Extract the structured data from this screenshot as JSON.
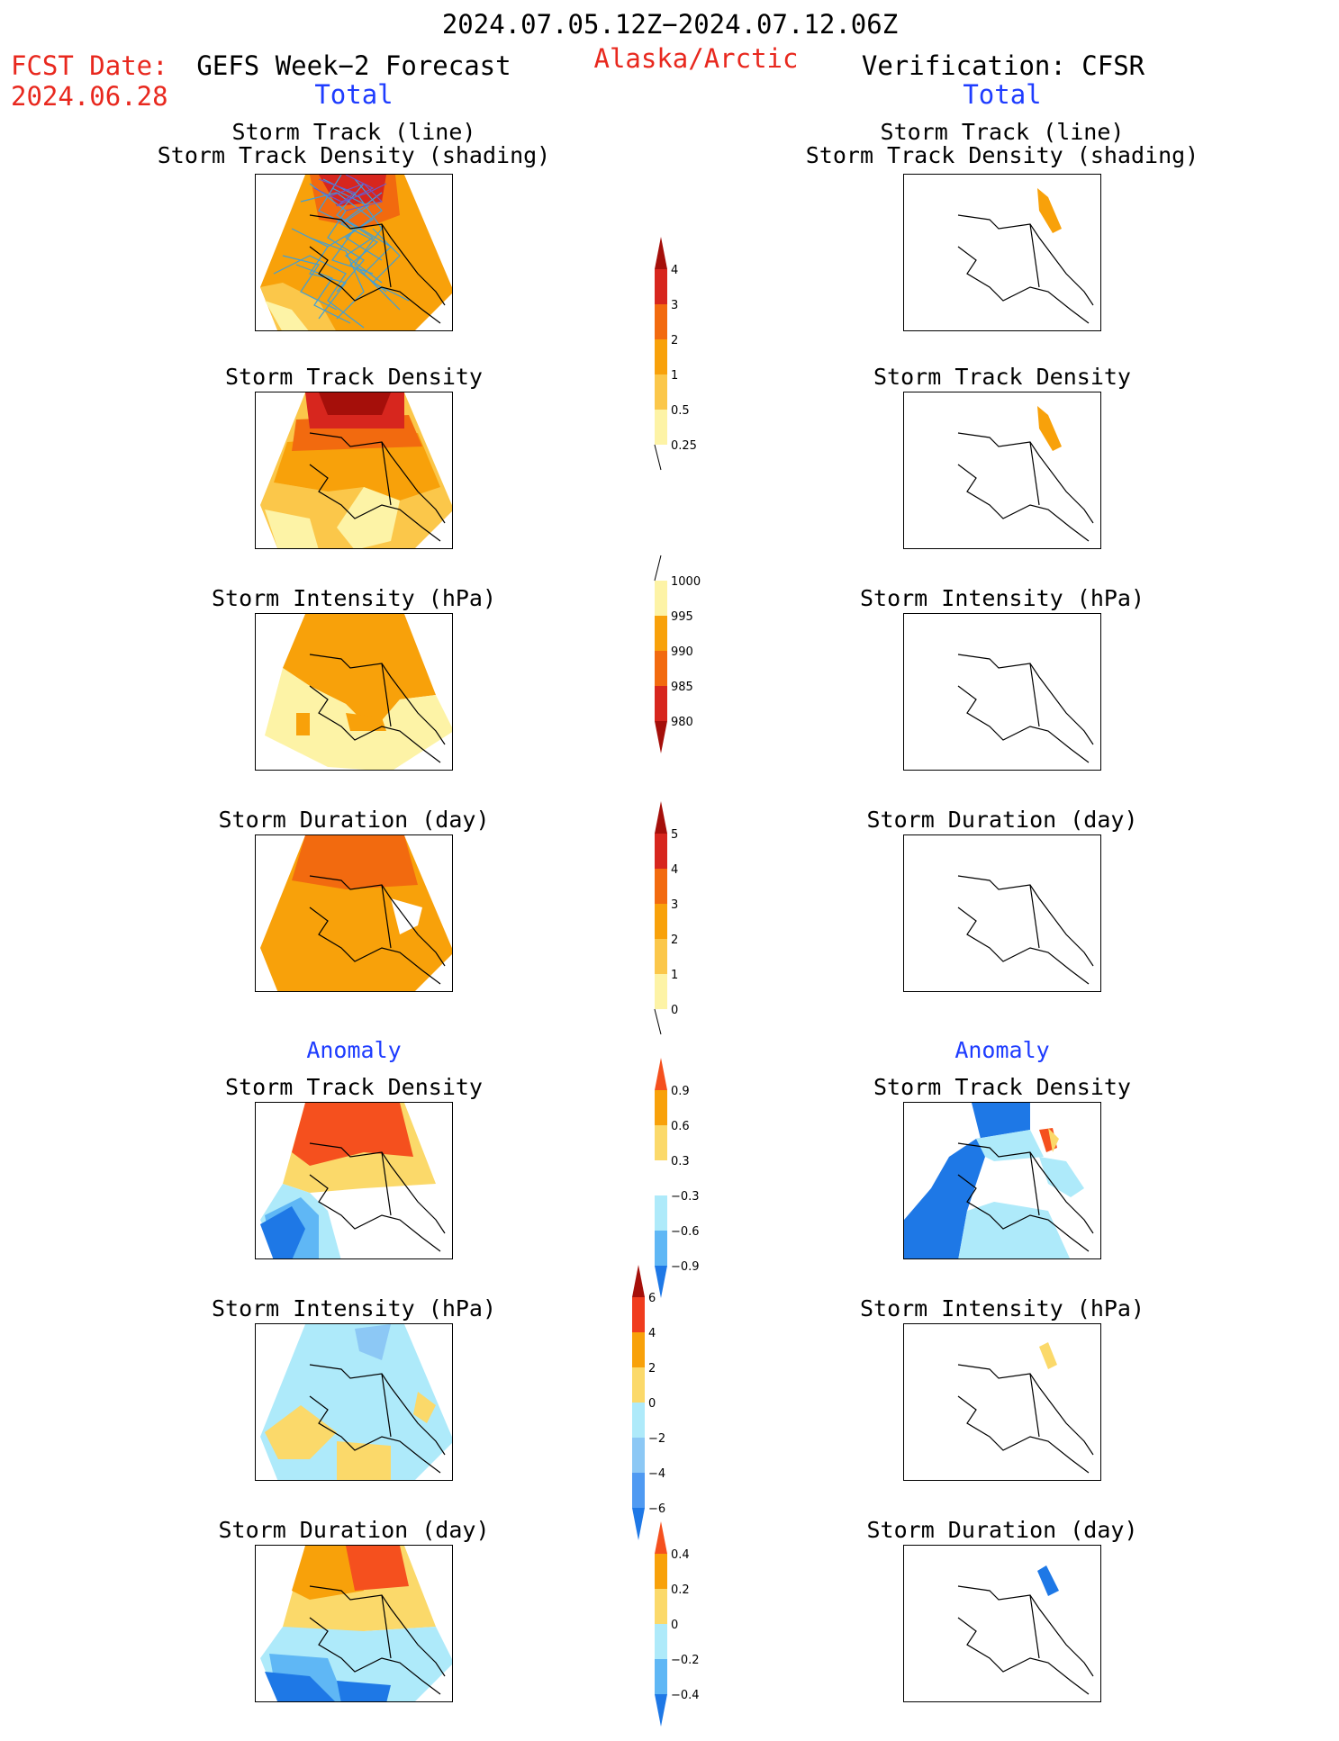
{
  "header": {
    "period": "2024.07.05.12Z−2024.07.12.06Z",
    "fcst_label": "FCST Date:",
    "fcst_date": "2024.06.28",
    "left_title": "GEFS Week−2 Forecast",
    "region": "Alaska/Arctic",
    "right_title": "Verification: CFSR",
    "total_left": "Total",
    "total_right": "Total",
    "anomaly_left": "Anomaly",
    "anomaly_right": "Anomaly"
  },
  "panels": {
    "left_1a": "Storm Track (line)",
    "left_1b": "Storm Track Density (shading)",
    "right_1a": "Storm Track (line)",
    "right_1b": "Storm Track Density (shading)",
    "left_2": "Storm Track Density",
    "right_2": "Storm Track Density",
    "left_3": "Storm Intensity (hPa)",
    "right_3": "Storm Intensity (hPa)",
    "left_4": "Storm Duration (day)",
    "right_4": "Storm Duration (day)",
    "left_5": "Storm Track Density",
    "right_5": "Storm Track Density",
    "left_6": "Storm Intensity (hPa)",
    "right_6": "Storm Intensity (hPa)",
    "left_7": "Storm Duration (day)",
    "right_7": "Storm Duration (day)"
  },
  "colorbars": {
    "density": {
      "ticks": [
        "4",
        "3",
        "2",
        "1",
        "0.5",
        "0.25"
      ],
      "colors": [
        "#a50f0a",
        "#d7261e",
        "#f26a0f",
        "#f8a10a",
        "#fbc74a",
        "#fdf3a6"
      ]
    },
    "intensity": {
      "ticks": [
        "1000",
        "995",
        "990",
        "985",
        "980"
      ],
      "colors": [
        "#fdf3a6",
        "#f8a10a",
        "#f26a0f",
        "#d7261e",
        "#a50f0a"
      ]
    },
    "duration": {
      "ticks": [
        "5",
        "4",
        "3",
        "2",
        "1",
        "0"
      ],
      "colors": [
        "#a50f0a",
        "#d7261e",
        "#f26a0f",
        "#f8a10a",
        "#fbc74a",
        "#fdf3a6"
      ]
    },
    "density_anom": {
      "ticks": [
        "0.9",
        "0.6",
        "0.3",
        "−0.3",
        "−0.6",
        "−0.9"
      ],
      "colors": [
        "#f5501e",
        "#f8a10a",
        "#fbd96a",
        "#ffffff",
        "#aeeafa",
        "#5fb7f5",
        "#1e78e6"
      ]
    },
    "intensity_anom": {
      "ticks": [
        "6",
        "4",
        "2",
        "0",
        "−2",
        "−4",
        "−6"
      ],
      "colors": [
        "#a50f0a",
        "#f03c1e",
        "#f8a10a",
        "#fbd96a",
        "#aeeafa",
        "#8cc8f5",
        "#4f9af2",
        "#1e78e6"
      ]
    },
    "duration_anom": {
      "ticks": [
        "0.4",
        "0.2",
        "0",
        "−0.2",
        "−0.4"
      ],
      "colors": [
        "#f5501e",
        "#f8a10a",
        "#fbd96a",
        "#aeeafa",
        "#5fb7f5",
        "#1e78e6"
      ]
    }
  }
}
